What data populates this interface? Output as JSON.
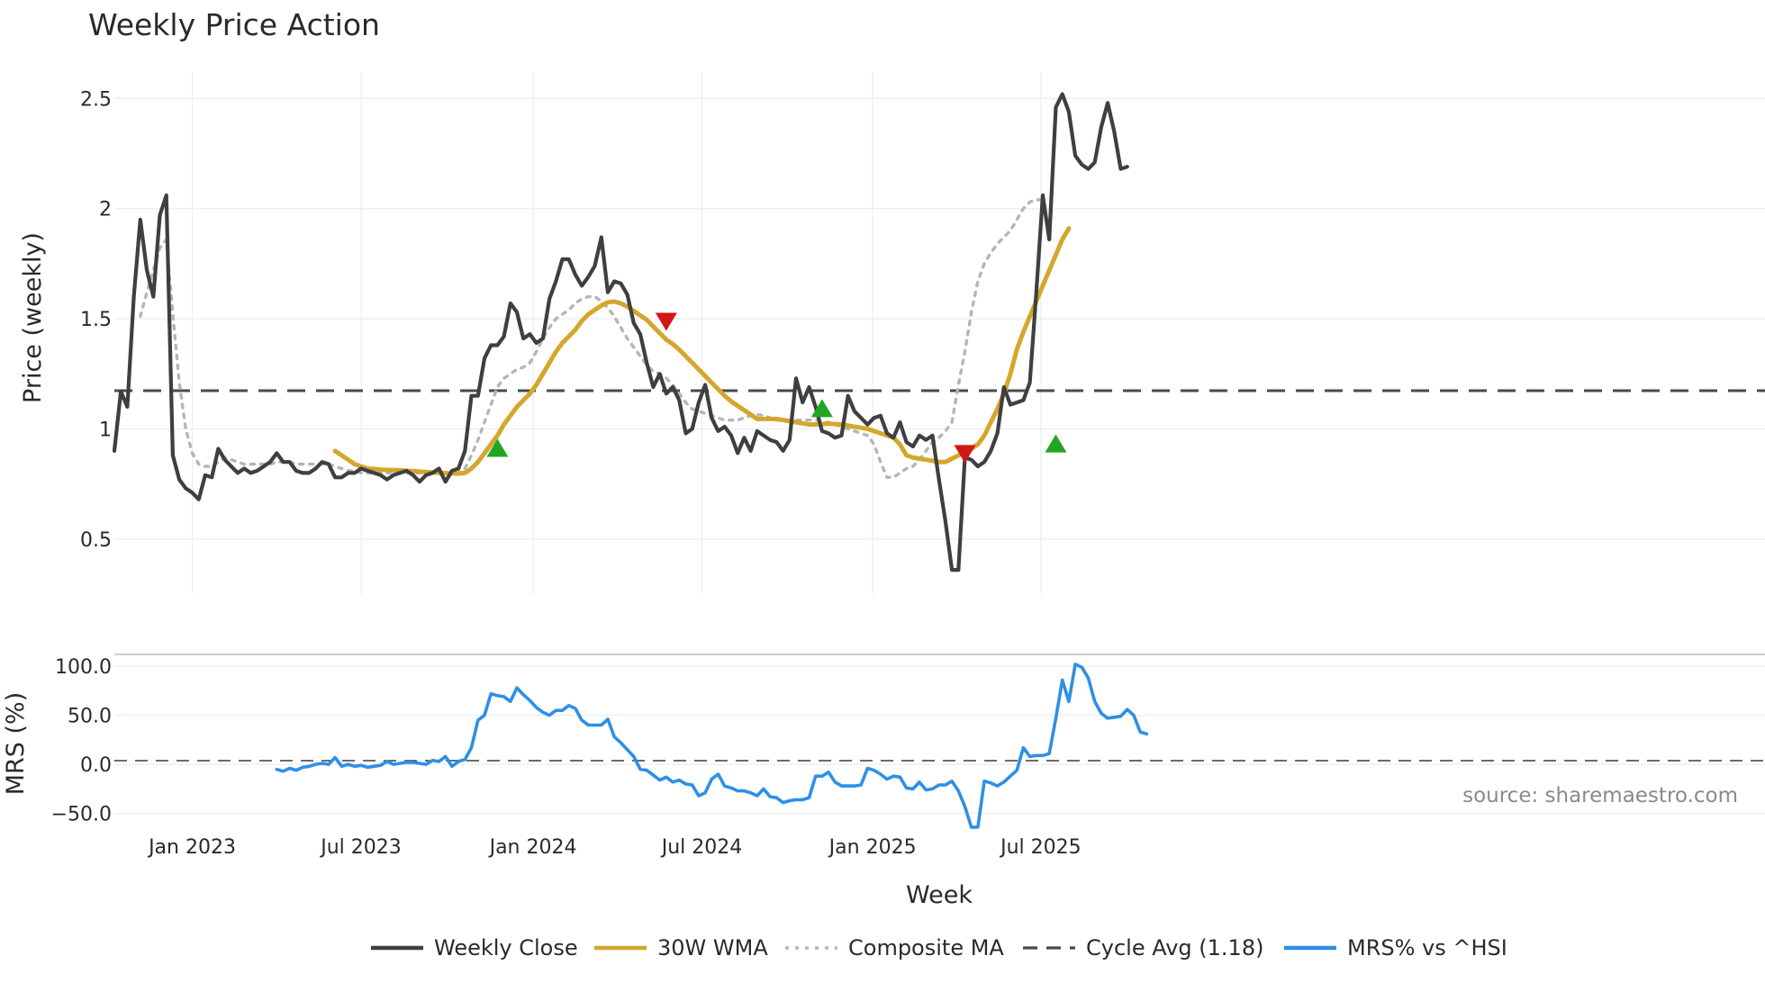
{
  "title": "Weekly Price Action",
  "source_text": "source: sharemaestro.com",
  "colors": {
    "close": "#3f3f3f",
    "wma": "#d4a72c",
    "composite": "#b5b5b5",
    "cycle": "#4a4a4a",
    "mrs": "#2e8fe6",
    "buy": "#22a522",
    "sell": "#d41616",
    "zero": "#3a3a3a"
  },
  "chart_data": [
    {
      "type": "line",
      "title": "Weekly Price Action",
      "xlabel": "",
      "ylabel": "Price (weekly)",
      "ylim": [
        0.25,
        2.62
      ],
      "x_ticks": [
        {
          "label": "Jan 2023",
          "week": 12
        },
        {
          "label": "Jul 2023",
          "week": 38
        },
        {
          "label": "Jan 2024",
          "week": 64.5
        },
        {
          "label": "Jul 2024",
          "week": 90.5
        },
        {
          "label": "Jan 2025",
          "week": 116.8
        },
        {
          "label": "Jul 2025",
          "week": 142.7
        }
      ],
      "y_ticks": [
        {
          "label": "0.5",
          "value": 0.5
        },
        {
          "label": "1",
          "value": 1.0
        },
        {
          "label": "1.5",
          "value": 1.5
        },
        {
          "label": "2",
          "value": 2.0
        },
        {
          "label": "2.5",
          "value": 2.5
        }
      ],
      "series": [
        {
          "name": "Weekly Close",
          "start_week": 0,
          "values": [
            0.9,
            1.17,
            1.1,
            1.6,
            1.95,
            1.72,
            1.6,
            1.97,
            2.06,
            0.88,
            0.77,
            0.73,
            0.71,
            0.68,
            0.79,
            0.78,
            0.91,
            0.86,
            0.83,
            0.8,
            0.82,
            0.8,
            0.81,
            0.83,
            0.85,
            0.89,
            0.85,
            0.85,
            0.81,
            0.8,
            0.8,
            0.82,
            0.85,
            0.84,
            0.78,
            0.78,
            0.8,
            0.8,
            0.82,
            0.81,
            0.8,
            0.79,
            0.77,
            0.79,
            0.8,
            0.81,
            0.79,
            0.76,
            0.79,
            0.8,
            0.82,
            0.76,
            0.81,
            0.82,
            0.9,
            1.15,
            1.15,
            1.32,
            1.38,
            1.38,
            1.42,
            1.57,
            1.53,
            1.41,
            1.43,
            1.39,
            1.41,
            1.59,
            1.67,
            1.77,
            1.77,
            1.7,
            1.65,
            1.69,
            1.74,
            1.87,
            1.62,
            1.67,
            1.66,
            1.61,
            1.48,
            1.43,
            1.3,
            1.19,
            1.25,
            1.16,
            1.19,
            1.13,
            0.98,
            1.0,
            1.12,
            1.2,
            1.05,
            0.99,
            1.01,
            0.97,
            0.89,
            0.96,
            0.9,
            0.99,
            0.97,
            0.95,
            0.94,
            0.9,
            0.95,
            1.23,
            1.12,
            1.19,
            1.1,
            0.99,
            0.98,
            0.96,
            0.97,
            1.15,
            1.08,
            1.05,
            1.02,
            1.05,
            1.06,
            0.98,
            0.96,
            1.03,
            0.94,
            0.92,
            0.97,
            0.95,
            0.97,
            0.77,
            0.58,
            0.36,
            0.36,
            0.87,
            0.86,
            0.83,
            0.85,
            0.9,
            0.98,
            1.19,
            1.11,
            1.12,
            1.13,
            1.21,
            1.62,
            2.06,
            1.86,
            2.46,
            2.52,
            2.44,
            2.24,
            2.2,
            2.18,
            2.21,
            2.37,
            2.48,
            2.35,
            2.18,
            2.19
          ]
        },
        {
          "name": "30W WMA",
          "start_week": 34,
          "values": [
            0.9,
            0.88,
            0.86,
            0.84,
            0.83,
            0.82,
            0.818,
            0.815,
            0.814,
            0.813,
            0.812,
            0.81,
            0.808,
            0.806,
            0.804,
            0.802,
            0.8,
            0.799,
            0.798,
            0.797,
            0.8,
            0.82,
            0.85,
            0.89,
            0.93,
            0.97,
            1.02,
            1.06,
            1.1,
            1.13,
            1.16,
            1.2,
            1.25,
            1.3,
            1.35,
            1.39,
            1.42,
            1.45,
            1.49,
            1.52,
            1.54,
            1.56,
            1.575,
            1.578,
            1.57,
            1.555,
            1.535,
            1.515,
            1.495,
            1.465,
            1.435,
            1.405,
            1.385,
            1.36,
            1.33,
            1.3,
            1.27,
            1.24,
            1.21,
            1.18,
            1.15,
            1.125,
            1.105,
            1.085,
            1.065,
            1.045,
            1.045,
            1.045,
            1.045,
            1.04,
            1.035,
            1.03,
            1.025,
            1.02,
            1.02,
            1.022,
            1.024,
            1.022,
            1.02,
            1.015,
            1.01,
            1.005,
            1.0,
            0.99,
            0.98,
            0.97,
            0.96,
            0.93,
            0.88,
            0.87,
            0.865,
            0.86,
            0.855,
            0.85,
            0.85,
            0.865,
            0.88,
            0.895,
            0.91,
            0.93,
            0.97,
            1.03,
            1.09,
            1.16,
            1.25,
            1.36,
            1.44,
            1.51,
            1.58,
            1.65,
            1.72,
            1.79,
            1.86,
            1.91
          ]
        },
        {
          "name": "Composite MA",
          "start_week": 4,
          "values": [
            1.51,
            1.62,
            1.72,
            1.82,
            1.86,
            1.52,
            1.21,
            1.0,
            0.89,
            0.84,
            0.83,
            0.83,
            0.85,
            0.87,
            0.86,
            0.85,
            0.84,
            0.84,
            0.84,
            0.84,
            0.84,
            0.85,
            0.85,
            0.85,
            0.84,
            0.84,
            0.84,
            0.84,
            0.84,
            0.84,
            0.83,
            0.82,
            0.81,
            0.81,
            0.8,
            0.8,
            0.8,
            0.8,
            0.8,
            0.8,
            0.8,
            0.8,
            0.8,
            0.8,
            0.8,
            0.8,
            0.8,
            0.8,
            0.8,
            0.8,
            0.82,
            0.88,
            0.95,
            1.03,
            1.11,
            1.19,
            1.23,
            1.25,
            1.27,
            1.28,
            1.3,
            1.35,
            1.41,
            1.46,
            1.5,
            1.52,
            1.54,
            1.57,
            1.59,
            1.6,
            1.6,
            1.58,
            1.55,
            1.51,
            1.46,
            1.41,
            1.37,
            1.33,
            1.29,
            1.26,
            1.25,
            1.23,
            1.2,
            1.16,
            1.12,
            1.09,
            1.08,
            1.07,
            1.06,
            1.05,
            1.04,
            1.04,
            1.04,
            1.05,
            1.06,
            1.065,
            1.06,
            1.05,
            1.04,
            1.04,
            1.04,
            1.04,
            1.04,
            1.04,
            1.04,
            1.03,
            1.03,
            1.02,
            1.01,
            1.0,
            0.99,
            0.98,
            0.97,
            0.93,
            0.85,
            0.78,
            0.78,
            0.8,
            0.82,
            0.83,
            0.86,
            0.9,
            0.94,
            0.96,
            0.99,
            1.03,
            1.2,
            1.35,
            1.53,
            1.67,
            1.75,
            1.8,
            1.84,
            1.87,
            1.9,
            1.95,
            2.0,
            2.03,
            2.04,
            2.04
          ]
        },
        {
          "name": "Cycle Avg (1.18)",
          "constant": 1.18
        }
      ],
      "markers": [
        {
          "type": "buy",
          "week": 59,
          "value": 0.91
        },
        {
          "type": "sell",
          "week": 85,
          "value": 1.49
        },
        {
          "type": "buy",
          "week": 109,
          "value": 1.09
        },
        {
          "type": "sell",
          "week": 131,
          "value": 0.89
        },
        {
          "type": "buy",
          "week": 145,
          "value": 0.93
        }
      ]
    },
    {
      "type": "line",
      "title": "",
      "xlabel": "Week",
      "ylabel": "MRS (%)",
      "ylim": [
        -65,
        112
      ],
      "y_ticks": [
        {
          "label": "−50.0",
          "value": -50
        },
        {
          "label": "0.0",
          "value": 0
        },
        {
          "label": "50.0",
          "value": 50
        },
        {
          "label": "100.0",
          "value": 100
        }
      ],
      "series": [
        {
          "name": "MRS% vs ^HSI",
          "start_week": 25,
          "values": [
            -5,
            -7,
            -4,
            -6,
            -3,
            -2,
            0,
            1,
            0,
            7,
            -2,
            0,
            -2,
            -1,
            -3,
            -2,
            -1,
            3,
            0,
            1,
            2,
            2,
            1,
            0,
            4,
            3,
            8,
            -2,
            3,
            5,
            17,
            45,
            50,
            72,
            70,
            69,
            64,
            78,
            71,
            65,
            58,
            53,
            50,
            55,
            55,
            60,
            57,
            45,
            40,
            40,
            40,
            46,
            28,
            22,
            15,
            8,
            -5,
            -6,
            -11,
            -16,
            -13,
            -18,
            -16,
            -20,
            -21,
            -32,
            -29,
            -15,
            -10,
            -22,
            -24,
            -27,
            -27,
            -29,
            -32,
            -25,
            -33,
            -34,
            -39,
            -37,
            -36,
            -36,
            -34,
            -12,
            -12,
            -8,
            -18,
            -22,
            -22,
            -22,
            -21,
            -4,
            -6,
            -10,
            -15,
            -12,
            -13,
            -24,
            -25,
            -18,
            -26,
            -25,
            -21,
            -21,
            -17,
            -27,
            -43,
            -64,
            -64,
            -17,
            -19,
            -22,
            -18,
            -12,
            -6,
            17,
            8,
            9,
            9,
            11,
            47,
            86,
            64,
            102,
            99,
            88,
            64,
            52,
            47,
            48,
            49,
            56,
            50,
            33,
            31
          ]
        },
        {
          "name": "Zero line",
          "constant": 0
        }
      ]
    }
  ],
  "x_axis": {
    "label": "Week"
  },
  "legend": [
    {
      "label": "Weekly Close",
      "style": "solid",
      "color": "#3f3f3f"
    },
    {
      "label": "30W WMA",
      "style": "solid",
      "color": "#d4a72c"
    },
    {
      "label": "Composite MA",
      "style": "dotted",
      "color": "#b5b5b5"
    },
    {
      "label": "Cycle Avg (1.18)",
      "style": "dashed",
      "color": "#4a4a4a"
    },
    {
      "label": "MRS% vs ^HSI",
      "style": "solid",
      "color": "#2e8fe6"
    }
  ]
}
